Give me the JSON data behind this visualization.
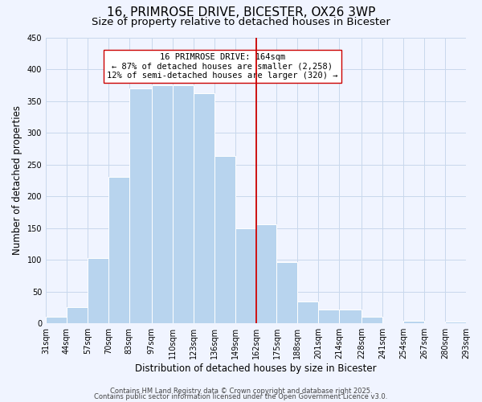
{
  "title": "16, PRIMROSE DRIVE, BICESTER, OX26 3WP",
  "subtitle": "Size of property relative to detached houses in Bicester",
  "xlabel": "Distribution of detached houses by size in Bicester",
  "ylabel": "Number of detached properties",
  "bin_edges": [
    31,
    44,
    57,
    70,
    83,
    97,
    110,
    123,
    136,
    149,
    162,
    175,
    188,
    201,
    214,
    228,
    241,
    254,
    267,
    280,
    293
  ],
  "counts": [
    10,
    25,
    103,
    230,
    370,
    375,
    375,
    362,
    263,
    150,
    156,
    97,
    34,
    22,
    22,
    10,
    0,
    4,
    0,
    3
  ],
  "bar_color": "#b8d4ee",
  "vline_x": 162,
  "vline_color": "#cc0000",
  "annotation_title": "16 PRIMROSE DRIVE: 164sqm",
  "annotation_line1": "← 87% of detached houses are smaller (2,258)",
  "annotation_line2": "12% of semi-detached houses are larger (320) →",
  "ylim": [
    0,
    450
  ],
  "yticks": [
    0,
    50,
    100,
    150,
    200,
    250,
    300,
    350,
    400,
    450
  ],
  "tick_labels": [
    "31sqm",
    "44sqm",
    "57sqm",
    "70sqm",
    "83sqm",
    "97sqm",
    "110sqm",
    "123sqm",
    "136sqm",
    "149sqm",
    "162sqm",
    "175sqm",
    "188sqm",
    "201sqm",
    "214sqm",
    "228sqm",
    "241sqm",
    "254sqm",
    "267sqm",
    "280sqm",
    "293sqm"
  ],
  "footer1": "Contains HM Land Registry data © Crown copyright and database right 2025.",
  "footer2": "Contains public sector information licensed under the Open Government Licence v3.0.",
  "bg_color": "#f0f4ff",
  "grid_color": "#c8d8ec",
  "title_fontsize": 11,
  "subtitle_fontsize": 9.5,
  "axis_label_fontsize": 8.5,
  "tick_fontsize": 7,
  "footer_fontsize": 6,
  "annotation_fontsize": 7.5
}
